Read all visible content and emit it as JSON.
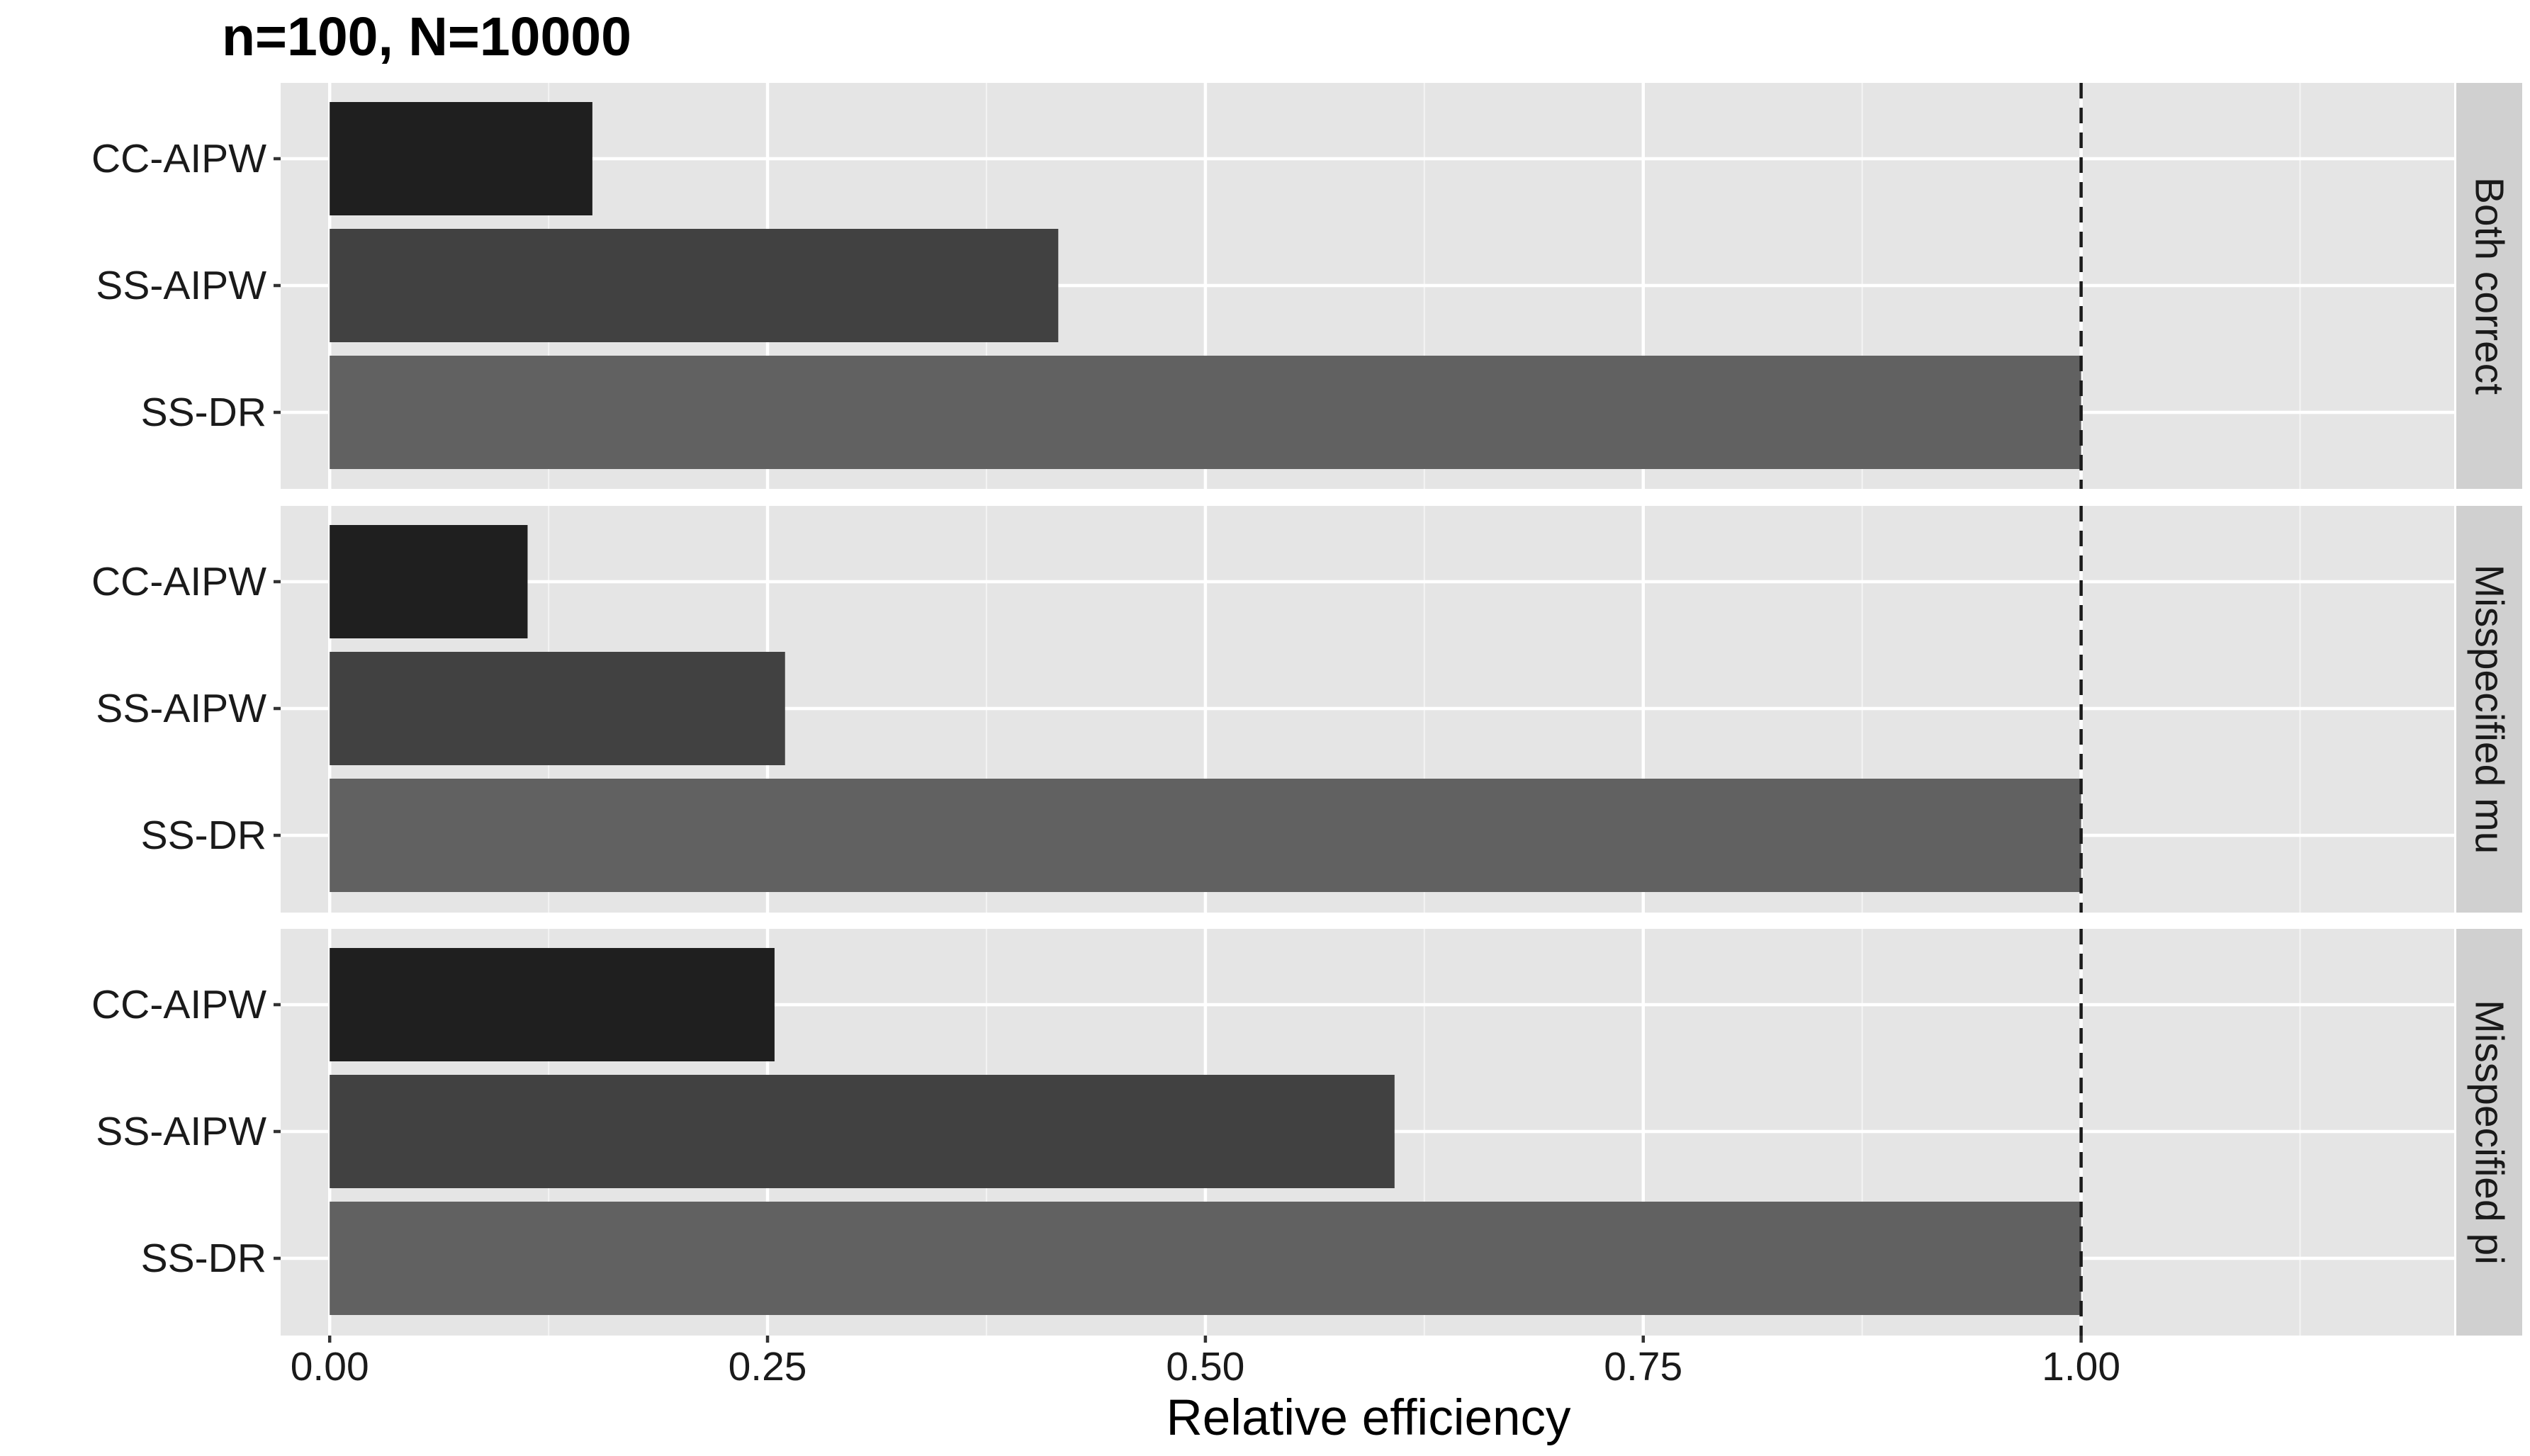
{
  "chart_data": {
    "type": "bar",
    "orientation": "horizontal",
    "title": "n=100, N=10000",
    "xlabel": "Relative efficiency",
    "ylabel": "",
    "xlim": [
      -0.028,
      1.213
    ],
    "x_ticks": [
      0,
      0.25,
      0.5,
      0.75,
      1
    ],
    "x_tick_labels": [
      "0.00",
      "0.25",
      "0.50",
      "0.75",
      "1.00"
    ],
    "x_minor_ticks": [
      0.125,
      0.375,
      0.625,
      0.875,
      1.125
    ],
    "reference_line": {
      "x": 1.0,
      "style": "dashed"
    },
    "grid": true,
    "legend": "none",
    "categories": [
      "CC-AIPW",
      "SS-AIPW",
      "SS-DR"
    ],
    "category_colors": {
      "CC-AIPW": "#1f1f1f",
      "SS-AIPW": "#414141",
      "SS-DR": "#616161"
    },
    "panels": [
      {
        "facet": "Both correct",
        "values": [
          0.15,
          0.416,
          1.0
        ]
      },
      {
        "facet": "Misspecified mu",
        "values": [
          0.113,
          0.26,
          1.0
        ]
      },
      {
        "facet": "Misspecified pi",
        "values": [
          0.254,
          0.608,
          1.0
        ]
      }
    ]
  },
  "colors": {
    "panel_background": "#e5e5e5",
    "strip_background": "#d0d0d0",
    "grid": "#ffffff",
    "text": "#1a1a1a"
  }
}
